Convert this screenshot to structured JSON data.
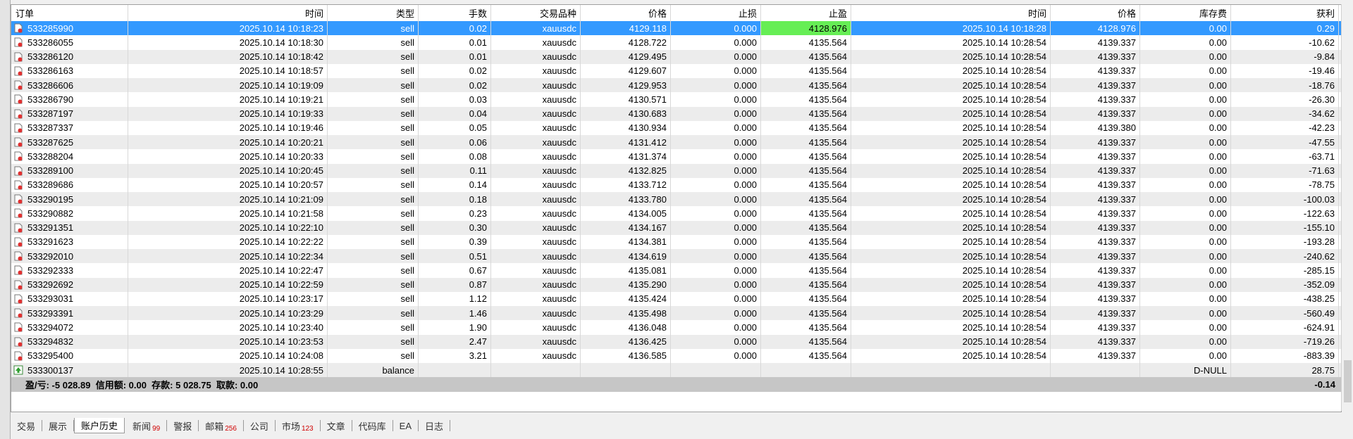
{
  "header": {
    "columns": [
      "订单",
      "时间",
      "类型",
      "手数",
      "交易品种",
      "价格",
      "止损",
      "止盈",
      "时间",
      "价格",
      "库存费",
      "获利"
    ]
  },
  "table": {
    "rows": [
      [
        "533285990",
        "2025.10.14 10:18:23",
        "sell",
        "0.02",
        "xauusdc",
        "4129.118",
        "0.000",
        "4128.976",
        "2025.10.14 10:18:28",
        "4128.976",
        "0.00",
        "0.29"
      ],
      [
        "533286055",
        "2025.10.14 10:18:30",
        "sell",
        "0.01",
        "xauusdc",
        "4128.722",
        "0.000",
        "4135.564",
        "2025.10.14 10:28:54",
        "4139.337",
        "0.00",
        "-10.62"
      ],
      [
        "533286120",
        "2025.10.14 10:18:42",
        "sell",
        "0.01",
        "xauusdc",
        "4129.495",
        "0.000",
        "4135.564",
        "2025.10.14 10:28:54",
        "4139.337",
        "0.00",
        "-9.84"
      ],
      [
        "533286163",
        "2025.10.14 10:18:57",
        "sell",
        "0.02",
        "xauusdc",
        "4129.607",
        "0.000",
        "4135.564",
        "2025.10.14 10:28:54",
        "4139.337",
        "0.00",
        "-19.46"
      ],
      [
        "533286606",
        "2025.10.14 10:19:09",
        "sell",
        "0.02",
        "xauusdc",
        "4129.953",
        "0.000",
        "4135.564",
        "2025.10.14 10:28:54",
        "4139.337",
        "0.00",
        "-18.76"
      ],
      [
        "533286790",
        "2025.10.14 10:19:21",
        "sell",
        "0.03",
        "xauusdc",
        "4130.571",
        "0.000",
        "4135.564",
        "2025.10.14 10:28:54",
        "4139.337",
        "0.00",
        "-26.30"
      ],
      [
        "533287197",
        "2025.10.14 10:19:33",
        "sell",
        "0.04",
        "xauusdc",
        "4130.683",
        "0.000",
        "4135.564",
        "2025.10.14 10:28:54",
        "4139.337",
        "0.00",
        "-34.62"
      ],
      [
        "533287337",
        "2025.10.14 10:19:46",
        "sell",
        "0.05",
        "xauusdc",
        "4130.934",
        "0.000",
        "4135.564",
        "2025.10.14 10:28:54",
        "4139.380",
        "0.00",
        "-42.23"
      ],
      [
        "533287625",
        "2025.10.14 10:20:21",
        "sell",
        "0.06",
        "xauusdc",
        "4131.412",
        "0.000",
        "4135.564",
        "2025.10.14 10:28:54",
        "4139.337",
        "0.00",
        "-47.55"
      ],
      [
        "533288204",
        "2025.10.14 10:20:33",
        "sell",
        "0.08",
        "xauusdc",
        "4131.374",
        "0.000",
        "4135.564",
        "2025.10.14 10:28:54",
        "4139.337",
        "0.00",
        "-63.71"
      ],
      [
        "533289100",
        "2025.10.14 10:20:45",
        "sell",
        "0.11",
        "xauusdc",
        "4132.825",
        "0.000",
        "4135.564",
        "2025.10.14 10:28:54",
        "4139.337",
        "0.00",
        "-71.63"
      ],
      [
        "533289686",
        "2025.10.14 10:20:57",
        "sell",
        "0.14",
        "xauusdc",
        "4133.712",
        "0.000",
        "4135.564",
        "2025.10.14 10:28:54",
        "4139.337",
        "0.00",
        "-78.75"
      ],
      [
        "533290195",
        "2025.10.14 10:21:09",
        "sell",
        "0.18",
        "xauusdc",
        "4133.780",
        "0.000",
        "4135.564",
        "2025.10.14 10:28:54",
        "4139.337",
        "0.00",
        "-100.03"
      ],
      [
        "533290882",
        "2025.10.14 10:21:58",
        "sell",
        "0.23",
        "xauusdc",
        "4134.005",
        "0.000",
        "4135.564",
        "2025.10.14 10:28:54",
        "4139.337",
        "0.00",
        "-122.63"
      ],
      [
        "533291351",
        "2025.10.14 10:22:10",
        "sell",
        "0.30",
        "xauusdc",
        "4134.167",
        "0.000",
        "4135.564",
        "2025.10.14 10:28:54",
        "4139.337",
        "0.00",
        "-155.10"
      ],
      [
        "533291623",
        "2025.10.14 10:22:22",
        "sell",
        "0.39",
        "xauusdc",
        "4134.381",
        "0.000",
        "4135.564",
        "2025.10.14 10:28:54",
        "4139.337",
        "0.00",
        "-193.28"
      ],
      [
        "533292010",
        "2025.10.14 10:22:34",
        "sell",
        "0.51",
        "xauusdc",
        "4134.619",
        "0.000",
        "4135.564",
        "2025.10.14 10:28:54",
        "4139.337",
        "0.00",
        "-240.62"
      ],
      [
        "533292333",
        "2025.10.14 10:22:47",
        "sell",
        "0.67",
        "xauusdc",
        "4135.081",
        "0.000",
        "4135.564",
        "2025.10.14 10:28:54",
        "4139.337",
        "0.00",
        "-285.15"
      ],
      [
        "533292692",
        "2025.10.14 10:22:59",
        "sell",
        "0.87",
        "xauusdc",
        "4135.290",
        "0.000",
        "4135.564",
        "2025.10.14 10:28:54",
        "4139.337",
        "0.00",
        "-352.09"
      ],
      [
        "533293031",
        "2025.10.14 10:23:17",
        "sell",
        "1.12",
        "xauusdc",
        "4135.424",
        "0.000",
        "4135.564",
        "2025.10.14 10:28:54",
        "4139.337",
        "0.00",
        "-438.25"
      ],
      [
        "533293391",
        "2025.10.14 10:23:29",
        "sell",
        "1.46",
        "xauusdc",
        "4135.498",
        "0.000",
        "4135.564",
        "2025.10.14 10:28:54",
        "4139.337",
        "0.00",
        "-560.49"
      ],
      [
        "533294072",
        "2025.10.14 10:23:40",
        "sell",
        "1.90",
        "xauusdc",
        "4136.048",
        "0.000",
        "4135.564",
        "2025.10.14 10:28:54",
        "4139.337",
        "0.00",
        "-624.91"
      ],
      [
        "533294832",
        "2025.10.14 10:23:53",
        "sell",
        "2.47",
        "xauusdc",
        "4136.425",
        "0.000",
        "4135.564",
        "2025.10.14 10:28:54",
        "4139.337",
        "0.00",
        "-719.26"
      ],
      [
        "533295400",
        "2025.10.14 10:24:08",
        "sell",
        "3.21",
        "xauusdc",
        "4136.585",
        "0.000",
        "4135.564",
        "2025.10.14 10:28:54",
        "4139.337",
        "0.00",
        "-883.39"
      ]
    ]
  },
  "balance_row": {
    "order": "533300137",
    "time": "2025.10.14 10:28:55",
    "type": "balance",
    "swap": "D-NULL",
    "profit": "28.75"
  },
  "summary": {
    "text": "盈/亏: -5 028.89  信用额: 0.00  存款: 5 028.75  取款: 0.00",
    "total": "-0.14"
  },
  "tabs": [
    {
      "label": "交易"
    },
    {
      "label": "展示"
    },
    {
      "label": "账户历史"
    },
    {
      "label": "新闻",
      "badge": "99"
    },
    {
      "label": "警报"
    },
    {
      "label": "邮箱",
      "badge": "256"
    },
    {
      "label": "公司"
    },
    {
      "label": "市场",
      "badge": "123"
    },
    {
      "label": "文章"
    },
    {
      "label": "代码库"
    },
    {
      "label": "EA"
    },
    {
      "label": "日志"
    }
  ]
}
